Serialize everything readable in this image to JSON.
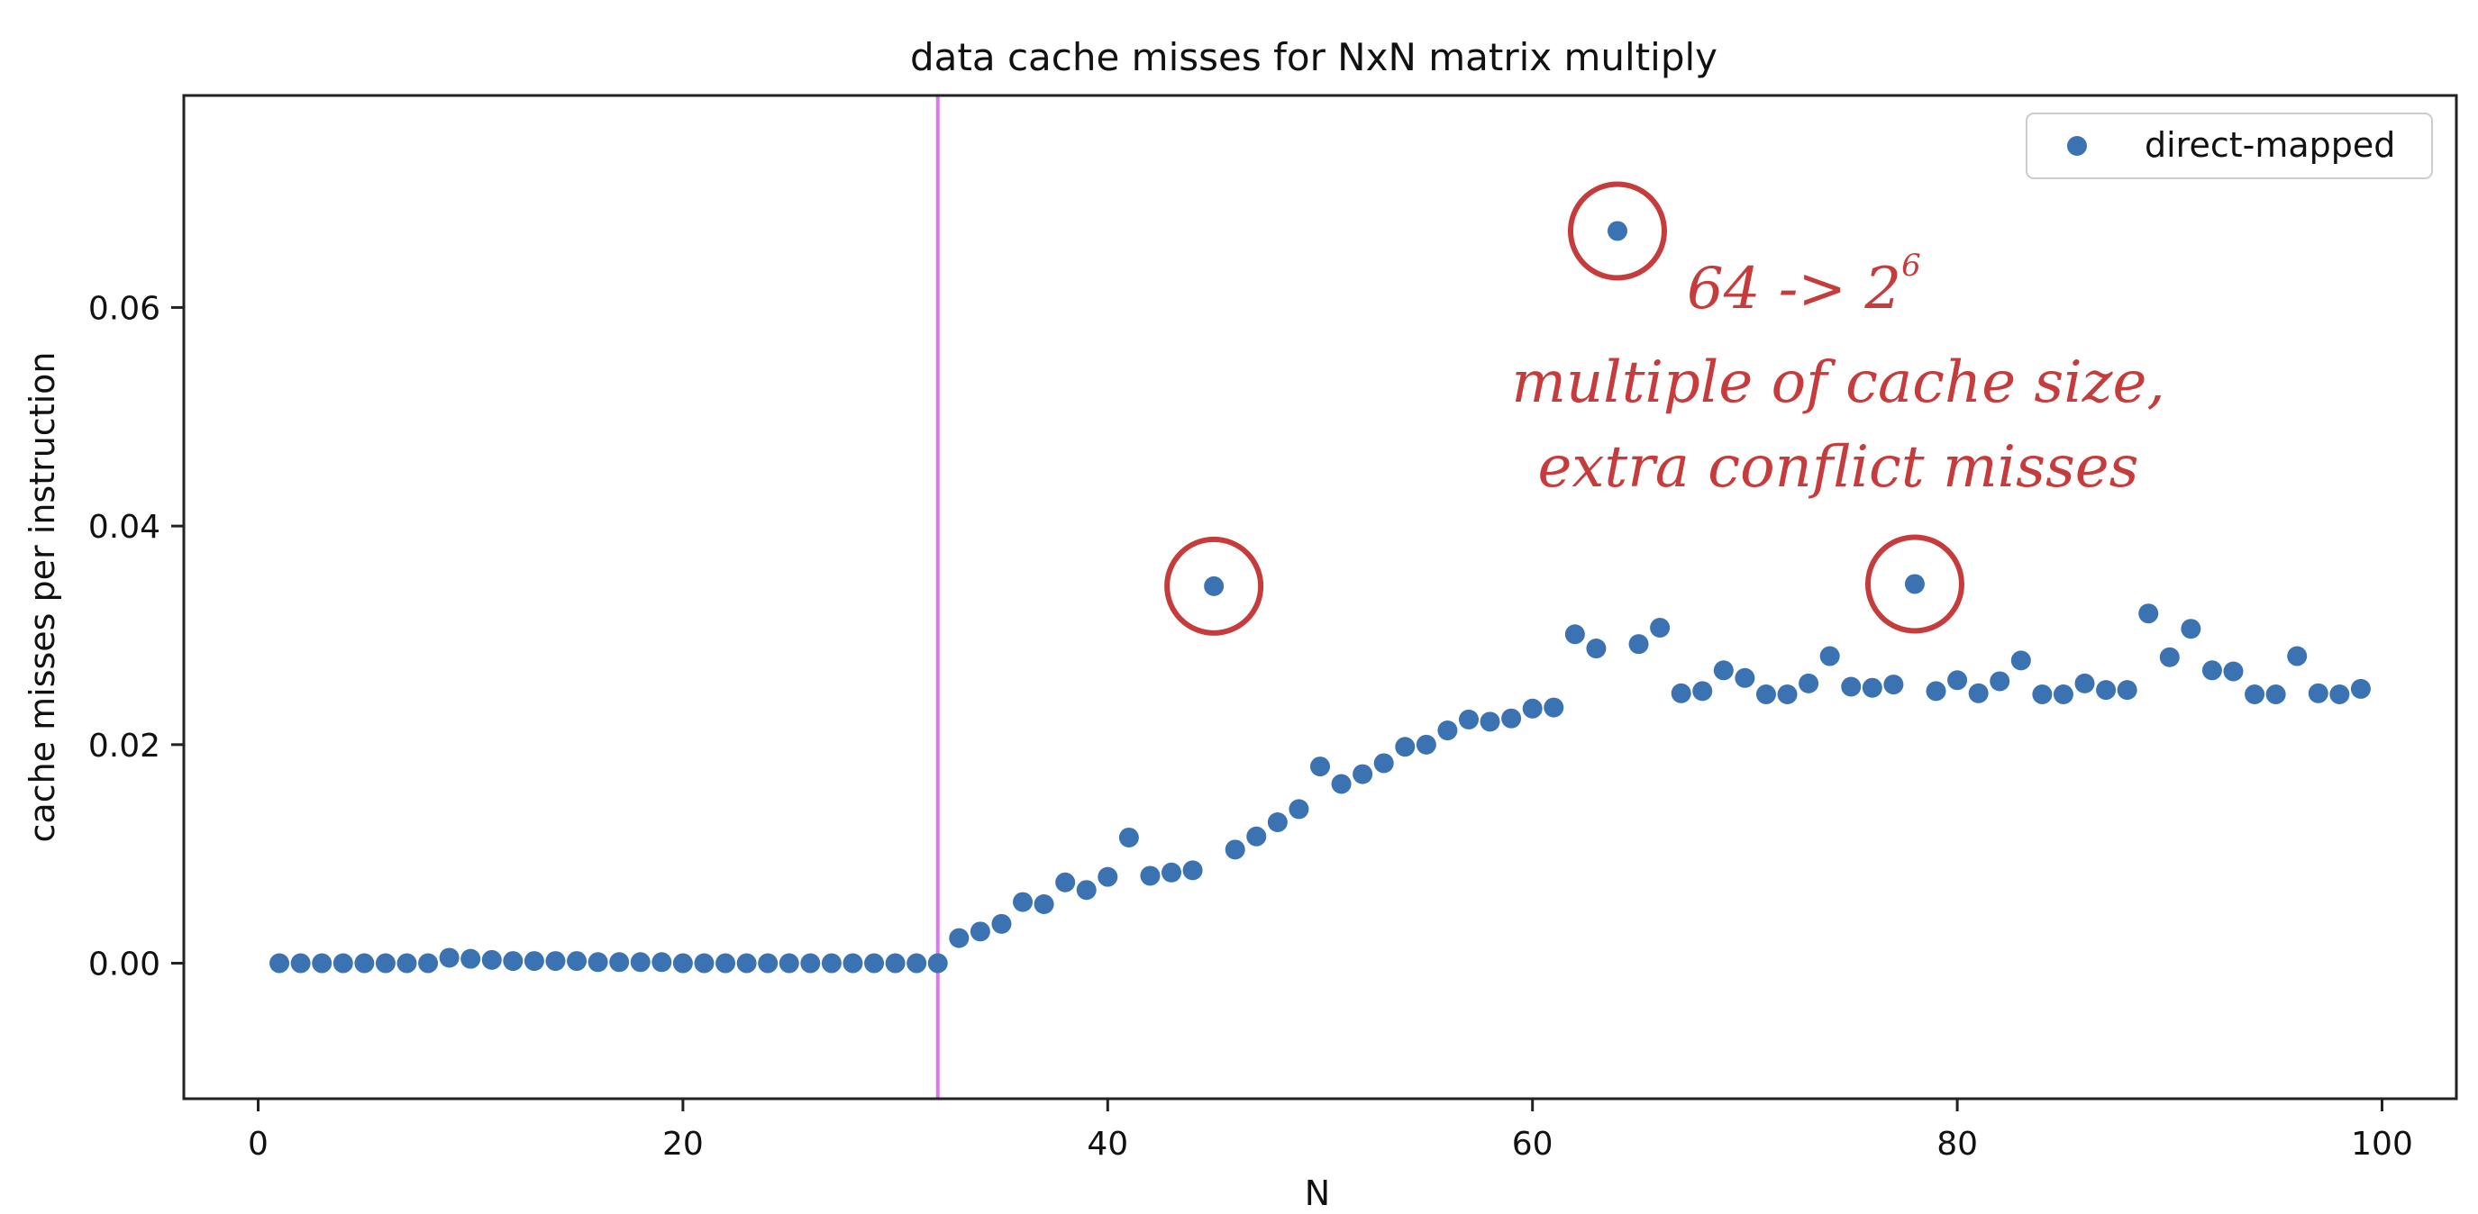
{
  "chart_data": {
    "type": "scatter",
    "title": "data cache misses for NxN matrix multiply",
    "xlabel": "N",
    "ylabel": "cache misses per instruction",
    "xlim": [
      -3.5,
      103.5
    ],
    "ylim": [
      -0.0124,
      0.0794
    ],
    "xticks": [
      0,
      20,
      40,
      60,
      80,
      100
    ],
    "yticks": [
      0.0,
      0.02,
      0.04,
      0.06
    ],
    "xtick_labels": [
      "0",
      "20",
      "40",
      "60",
      "80",
      "100"
    ],
    "ytick_labels": [
      "0.00",
      "0.02",
      "0.04",
      "0.06"
    ],
    "grid": false,
    "legend_position": "top-right",
    "vertical_line_x": 32,
    "colors": {
      "series": "#3b73b2",
      "vline": "#dd77ee",
      "annotation": "#c63b3b"
    },
    "series": [
      {
        "name": "direct-mapped",
        "x": [
          1,
          2,
          3,
          4,
          5,
          6,
          7,
          8,
          9,
          10,
          11,
          12,
          13,
          14,
          15,
          16,
          17,
          18,
          19,
          20,
          21,
          22,
          23,
          24,
          25,
          26,
          27,
          28,
          29,
          30,
          31,
          32,
          33,
          34,
          35,
          36,
          37,
          38,
          39,
          40,
          41,
          42,
          43,
          44,
          45,
          46,
          47,
          48,
          49,
          50,
          51,
          52,
          53,
          54,
          55,
          56,
          57,
          58,
          59,
          60,
          61,
          62,
          63,
          64,
          65,
          66,
          67,
          68,
          69,
          70,
          71,
          72,
          73,
          74,
          75,
          76,
          77,
          78,
          79,
          80,
          81,
          82,
          83,
          84,
          85,
          86,
          87,
          88,
          89,
          90,
          91,
          92,
          93,
          94,
          95,
          96,
          97,
          98,
          99
        ],
        "y": [
          0.0,
          0.0,
          0.0,
          0.0,
          0.0,
          0.0,
          0.0,
          0.0,
          0.0005,
          0.0004,
          0.0003,
          0.0002,
          0.0002,
          0.0002,
          0.0002,
          0.0001,
          0.0001,
          0.0001,
          0.0001,
          0.0,
          0.0,
          0.0,
          0.0,
          0.0,
          0.0,
          0.0,
          0.0,
          0.0,
          0.0,
          0.0,
          0.0,
          0.0,
          0.0023,
          0.0029,
          0.0036,
          0.0056,
          0.0054,
          0.0074,
          0.0067,
          0.0079,
          0.0115,
          0.008,
          0.0083,
          0.0085,
          0.0345,
          0.0104,
          0.0116,
          0.0129,
          0.0141,
          0.018,
          0.0164,
          0.0173,
          0.0183,
          0.0198,
          0.02,
          0.0213,
          0.0223,
          0.0221,
          0.0224,
          0.0233,
          0.0234,
          0.0301,
          0.0288,
          0.067,
          0.0292,
          0.0307,
          0.0247,
          0.0249,
          0.0268,
          0.0261,
          0.0246,
          0.0246,
          0.0256,
          0.0281,
          0.0253,
          0.0252,
          0.0255,
          0.0347,
          0.0249,
          0.0259,
          0.0247,
          0.0258,
          0.0277,
          0.0246,
          0.0246,
          0.0256,
          0.025,
          0.025,
          0.032,
          0.028,
          0.0306,
          0.0268,
          0.0267,
          0.0246,
          0.0246,
          0.0281,
          0.0247,
          0.0246,
          0.0251
        ]
      }
    ],
    "annotations": {
      "line1_main": "64 -> 2",
      "line1_superscript": "6",
      "line2": "multiple of cache size,",
      "line3": "extra conflict misses",
      "circled_points": [
        45,
        64,
        78
      ]
    }
  }
}
